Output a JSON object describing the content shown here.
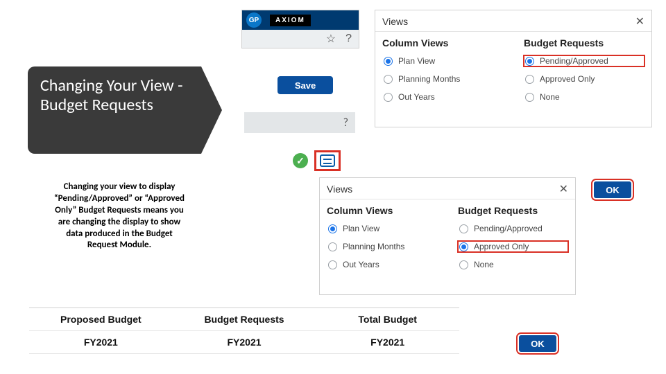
{
  "title": "Changing Your View - Budget Requests",
  "description": "Changing your view to display “Pending/Approved” or “Approved Only” Budget Requests means you are changing the display to show data produced in the Budget Request Module.",
  "axiom": {
    "gp": "GP",
    "logo": "AXIOM",
    "star": "☆",
    "help": "?"
  },
  "save_label": "Save",
  "help2": "?",
  "ok_label": "OK",
  "views": {
    "title": "Views",
    "col1_title": "Column Views",
    "col2_title": "Budget Requests",
    "col1_items": [
      "Plan View",
      "Planning Months",
      "Out Years"
    ],
    "col2_items": [
      "Pending/Approved",
      "Approved Only",
      "None"
    ]
  },
  "panel1": {
    "col1_selected": 0,
    "col2_selected": 0,
    "highlight_col2_index": 0
  },
  "panel2": {
    "col1_selected": 0,
    "col2_selected": 1,
    "highlight_col2_index": 1
  },
  "budget_table": {
    "headers": [
      "Proposed Budget",
      "Budget Requests",
      "Total Budget"
    ],
    "sub": [
      "FY2021",
      "FY2021",
      "FY2021"
    ]
  },
  "colors": {
    "title_bg": "#3a3a3a",
    "brand_blue": "#0a4f9e",
    "radio_blue": "#1a73e8",
    "highlight_red": "#d93025",
    "check_green": "#4caf50"
  }
}
